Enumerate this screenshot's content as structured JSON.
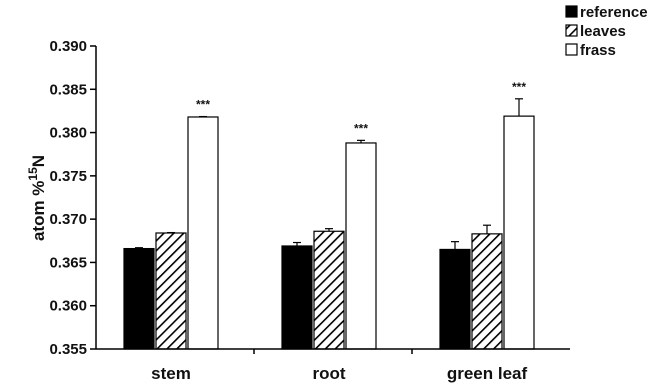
{
  "chart_data": {
    "type": "bar",
    "categories": [
      "stem",
      "root",
      "green leaf"
    ],
    "series": [
      {
        "name": "reference",
        "values": [
          0.3666,
          0.3669,
          0.3665
        ],
        "errors": [
          0.0001,
          0.0004,
          0.0009
        ],
        "fill": "solid"
      },
      {
        "name": "leaves",
        "values": [
          0.3684,
          0.3686,
          0.3683
        ],
        "errors": [
          5e-05,
          0.0003,
          0.001
        ],
        "fill": "hatched"
      },
      {
        "name": "frass",
        "values": [
          0.3818,
          0.3788,
          0.3819
        ],
        "errors": [
          5e-05,
          0.0003,
          0.002
        ],
        "fill": "white"
      }
    ],
    "significance": [
      "***",
      "***",
      "***"
    ],
    "ylabel_prefix": "atom %",
    "ylabel_superscript": "15",
    "ylabel_suffix": "N",
    "xlabel": "",
    "title": "",
    "ylim": [
      0.355,
      0.39
    ],
    "yticks": [
      "0.355",
      "0.360",
      "0.365",
      "0.370",
      "0.375",
      "0.380",
      "0.385",
      "0.390"
    ],
    "legend_position": "top-right",
    "grid": false,
    "colors": {
      "reference": "#000000",
      "leaves_hatch": "#000000",
      "frass": "#ffffff",
      "axis": "#000000"
    }
  }
}
